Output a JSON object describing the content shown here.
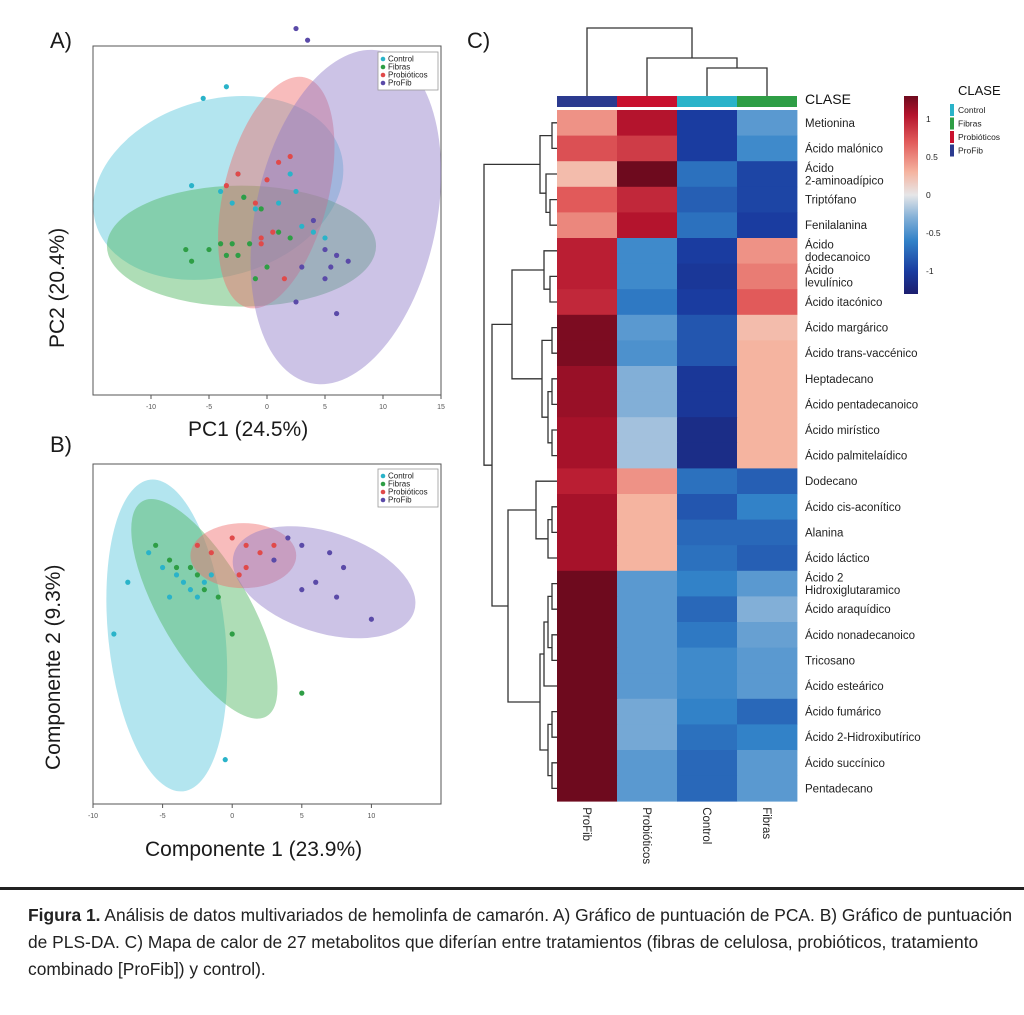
{
  "panels": {
    "a": {
      "letter": "A)"
    },
    "b": {
      "letter": "B)"
    },
    "c": {
      "letter": "C)"
    }
  },
  "chart_data": [
    {
      "id": "pca",
      "type": "scatter",
      "xlabel": "PC1 (24.5%)",
      "ylabel": "PC2 (20.4%)",
      "xlim": [
        -15,
        15
      ],
      "ylim": [
        -15,
        15
      ],
      "xticks": [
        -10,
        -5,
        0,
        5,
        10,
        15
      ],
      "legend": [
        "Control",
        "Fibras",
        "Probióticos",
        "ProFib"
      ],
      "legend_position": "top-right",
      "series": [
        {
          "name": "Control",
          "color": "#2ab3c9",
          "points": [
            [
              -5.5,
              10.5
            ],
            [
              -3.5,
              11.5
            ],
            [
              -6.5,
              3
            ],
            [
              -4,
              2.5
            ],
            [
              -3,
              1.5
            ],
            [
              -2.5,
              4
            ],
            [
              -2,
              2
            ],
            [
              -1,
              1
            ],
            [
              1,
              1.5
            ],
            [
              2,
              4
            ],
            [
              2.5,
              2.5
            ],
            [
              3,
              -0.5
            ],
            [
              4,
              -1
            ],
            [
              5,
              -1.5
            ]
          ]
        },
        {
          "name": "Fibras",
          "color": "#2e9e45",
          "points": [
            [
              -7,
              -2.5
            ],
            [
              -6.5,
              -3.5
            ],
            [
              -5,
              -2.5
            ],
            [
              -4,
              -2
            ],
            [
              -3.5,
              -3
            ],
            [
              -3,
              -2
            ],
            [
              -2.5,
              -3
            ],
            [
              -1.5,
              -2
            ],
            [
              -1,
              -5
            ],
            [
              0,
              -4
            ],
            [
              1,
              -1
            ],
            [
              2,
              -1.5
            ],
            [
              -2,
              2
            ],
            [
              -0.5,
              1
            ]
          ]
        },
        {
          "name": "Probióticos",
          "color": "#e04a4a",
          "points": [
            [
              -3.5,
              3
            ],
            [
              -2.5,
              4
            ],
            [
              -1,
              1.5
            ],
            [
              0,
              3.5
            ],
            [
              1,
              5
            ],
            [
              2,
              5.5
            ],
            [
              0.5,
              -1
            ],
            [
              -0.5,
              -2
            ],
            [
              1.5,
              -5
            ],
            [
              -0.5,
              -1.5
            ]
          ]
        },
        {
          "name": "ProFib",
          "color": "#5a4aa8",
          "points": [
            [
              2.5,
              16.5
            ],
            [
              3.5,
              15.5
            ],
            [
              11.5,
              13
            ],
            [
              5,
              -2.5
            ],
            [
              6,
              -3
            ],
            [
              7,
              -3.5
            ],
            [
              5.5,
              -4
            ],
            [
              5,
              -5
            ],
            [
              6,
              -8
            ],
            [
              2.5,
              -7
            ],
            [
              4,
              0
            ],
            [
              3,
              -4
            ]
          ]
        }
      ],
      "ellipses": [
        {
          "name": "Control",
          "color": "#56c6dc"
        },
        {
          "name": "Fibras",
          "color": "#4cb35d"
        },
        {
          "name": "Probióticos",
          "color": "#ef6a6a"
        },
        {
          "name": "ProFib",
          "color": "#8d7ac8"
        }
      ]
    },
    {
      "id": "plsda",
      "type": "scatter",
      "xlabel": "Componente 1 (23.9%)",
      "ylabel": "Componente 2 (9.3%)",
      "xlim": [
        -10,
        15
      ],
      "ylim": [
        -15,
        8
      ],
      "xticks": [
        -10,
        -5,
        0,
        5,
        10
      ],
      "legend": [
        "Control",
        "Fibras",
        "Probióticos",
        "ProFib"
      ],
      "legend_position": "top-right",
      "series": [
        {
          "name": "Control",
          "color": "#2ab3c9",
          "points": [
            [
              -7.5,
              0
            ],
            [
              -6,
              2
            ],
            [
              -5,
              1
            ],
            [
              -4.5,
              -1
            ],
            [
              -4,
              0.5
            ],
            [
              -3.5,
              0
            ],
            [
              -3,
              -0.5
            ],
            [
              -2.5,
              -1
            ],
            [
              -2,
              0
            ],
            [
              -1.5,
              0.5
            ],
            [
              -8.5,
              -3.5
            ],
            [
              -0.5,
              -12
            ]
          ]
        },
        {
          "name": "Fibras",
          "color": "#2e9e45",
          "points": [
            [
              -5.5,
              2.5
            ],
            [
              -4.5,
              1.5
            ],
            [
              -4,
              1
            ],
            [
              -3,
              1
            ],
            [
              -2.5,
              0.5
            ],
            [
              -2,
              -0.5
            ],
            [
              -1,
              -1
            ],
            [
              0,
              -3.5
            ],
            [
              5,
              -7.5
            ]
          ]
        },
        {
          "name": "Probióticos",
          "color": "#e04a4a",
          "points": [
            [
              -2.5,
              2.5
            ],
            [
              -1.5,
              2
            ],
            [
              0,
              3
            ],
            [
              1,
              2.5
            ],
            [
              2,
              2
            ],
            [
              3,
              2.5
            ],
            [
              1,
              1
            ],
            [
              0.5,
              0.5
            ]
          ]
        },
        {
          "name": "ProFib",
          "color": "#5a4aa8",
          "points": [
            [
              4,
              3
            ],
            [
              5,
              2.5
            ],
            [
              7,
              2
            ],
            [
              8,
              1
            ],
            [
              3,
              1.5
            ],
            [
              6,
              0
            ],
            [
              7.5,
              -1
            ],
            [
              10,
              -2.5
            ],
            [
              5,
              -0.5
            ]
          ]
        }
      ],
      "ellipses": [
        {
          "name": "Control",
          "color": "#56c6dc"
        },
        {
          "name": "Fibras",
          "color": "#4cb35d"
        },
        {
          "name": "Probióticos",
          "color": "#ef6a6a"
        },
        {
          "name": "ProFib",
          "color": "#8d7ac8"
        }
      ]
    },
    {
      "id": "heatmap",
      "type": "heatmap",
      "columns": [
        "ProFib",
        "Probióticos",
        "Control",
        "Fibras"
      ],
      "class_colors": [
        "#2b3a8f",
        "#c8102e",
        "#2ab3c9",
        "#2e9e45"
      ],
      "class_label": "CLASE",
      "legend_title": "CLASE",
      "legend": [
        {
          "name": "Control",
          "color": "#2ab3c9"
        },
        {
          "name": "Fibras",
          "color": "#2e9e45"
        },
        {
          "name": "Probióticos",
          "color": "#c8102e"
        },
        {
          "name": "ProFib",
          "color": "#2b3a8f"
        }
      ],
      "colorbar_ticks": [
        {
          "value": 1,
          "label": "1"
        },
        {
          "value": 0.5,
          "label": "0.5"
        },
        {
          "value": 0,
          "label": "0"
        },
        {
          "value": -0.5,
          "label": "-0.5"
        },
        {
          "value": -1,
          "label": "-1"
        }
      ],
      "colorbar_range": [
        -1.3,
        1.3
      ],
      "rows": [
        {
          "label": "Metionina",
          "values": [
            0.45,
            1.05,
            -1.0,
            -0.45
          ]
        },
        {
          "label": "Ácido malónico",
          "values": [
            0.75,
            0.85,
            -1.0,
            -0.55
          ]
        },
        {
          "label": "Ácido\n2-aminoadípico",
          "values": [
            0.25,
            1.3,
            -0.7,
            -0.95
          ]
        },
        {
          "label": "Triptófano",
          "values": [
            0.7,
            0.95,
            -0.8,
            -0.95
          ]
        },
        {
          "label": "Fenilalanina",
          "values": [
            0.5,
            1.05,
            -0.7,
            -1.0
          ]
        },
        {
          "label": "Ácido\ndodecanoico",
          "values": [
            1.0,
            -0.55,
            -1.0,
            0.45
          ]
        },
        {
          "label": "Ácido\nlevulínico",
          "values": [
            1.0,
            -0.55,
            -1.05,
            0.55
          ]
        },
        {
          "label": "Ácido itacónico",
          "values": [
            0.95,
            -0.65,
            -1.0,
            0.7
          ]
        },
        {
          "label": "Ácido margárico",
          "values": [
            1.25,
            -0.45,
            -0.85,
            0.25
          ]
        },
        {
          "label": "Ácido trans-vaccénico",
          "values": [
            1.25,
            -0.5,
            -0.85,
            0.3
          ]
        },
        {
          "label": "Heptadecano",
          "values": [
            1.15,
            -0.3,
            -1.05,
            0.3
          ]
        },
        {
          "label": "Ácido pentadecanoico",
          "values": [
            1.15,
            -0.3,
            -1.05,
            0.3
          ]
        },
        {
          "label": "Ácido mirístico",
          "values": [
            1.1,
            -0.2,
            -1.15,
            0.3
          ]
        },
        {
          "label": "Ácido palmitelaídico",
          "values": [
            1.1,
            -0.2,
            -1.15,
            0.3
          ]
        },
        {
          "label": "Dodecano",
          "values": [
            1.0,
            0.45,
            -0.7,
            -0.8
          ]
        },
        {
          "label": "Ácido cis-aconítico",
          "values": [
            1.1,
            0.3,
            -0.85,
            -0.6
          ]
        },
        {
          "label": "Alanina",
          "values": [
            1.1,
            0.3,
            -0.75,
            -0.75
          ]
        },
        {
          "label": "Ácido láctico",
          "values": [
            1.1,
            0.3,
            -0.7,
            -0.8
          ]
        },
        {
          "label": "Ácido 2\nHidroxiglutaramico",
          "values": [
            1.3,
            -0.45,
            -0.6,
            -0.45
          ]
        },
        {
          "label": "Ácido araquídico",
          "values": [
            1.3,
            -0.45,
            -0.75,
            -0.3
          ]
        },
        {
          "label": "Ácido nonadecanoico",
          "values": [
            1.3,
            -0.45,
            -0.65,
            -0.4
          ]
        },
        {
          "label": "Tricosano",
          "values": [
            1.3,
            -0.45,
            -0.55,
            -0.45
          ]
        },
        {
          "label": "Ácido esteárico",
          "values": [
            1.3,
            -0.45,
            -0.55,
            -0.45
          ]
        },
        {
          "label": "Ácido fumárico",
          "values": [
            1.3,
            -0.35,
            -0.6,
            -0.75
          ]
        },
        {
          "label": "Ácido 2-Hidroxibutírico",
          "values": [
            1.3,
            -0.35,
            -0.7,
            -0.6
          ]
        },
        {
          "label": "Ácido succínico",
          "values": [
            1.3,
            -0.45,
            -0.75,
            -0.45
          ]
        },
        {
          "label": "Pentadecano",
          "values": [
            1.3,
            -0.45,
            -0.75,
            -0.45
          ]
        }
      ]
    }
  ],
  "caption": {
    "label": "Figura 1.",
    "text": " Análisis de datos multivariados de hemolinfa de camarón. A) Gráfico de puntuación de PCA. B) Gráfico de puntuación de PLS-DA. C) Mapa de calor de 27 metabolitos que diferían entre tratamientos (fibras de celulosa, probióticos, tratamiento combinado [ProFib]) y control)."
  }
}
